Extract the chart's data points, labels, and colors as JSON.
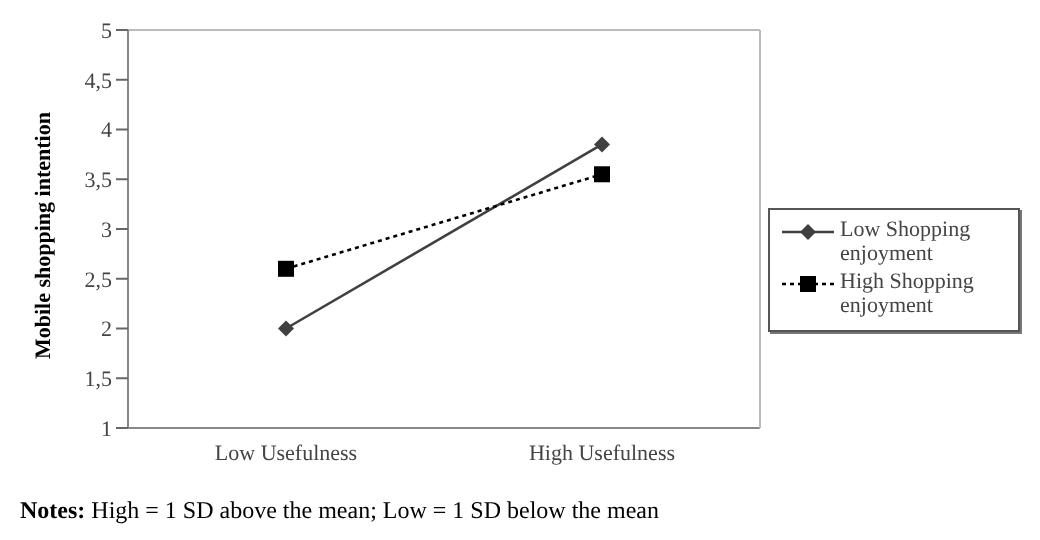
{
  "chart_data": {
    "type": "line",
    "ylabel": "Mobile shopping intention",
    "categories": [
      "Low Usefulness",
      "High Usefulness"
    ],
    "series": [
      {
        "name": "Low Shopping enjoyment",
        "color": "#404040",
        "values": [
          2.0,
          3.85
        ],
        "marker": "diamond",
        "line_style": "solid"
      },
      {
        "name": "High Shopping enjoyment",
        "color": "#000000",
        "values": [
          2.6,
          3.55
        ],
        "marker": "square",
        "line_style": "dotted"
      }
    ],
    "ylim": [
      1,
      5
    ],
    "yticks": [
      1,
      {
        "value": 1.5,
        "label": "1,5"
      },
      2,
      {
        "value": 2.5,
        "label": "2,5"
      },
      3,
      {
        "value": 3.5,
        "label": "3,5"
      },
      4,
      {
        "value": 4.5,
        "label": "4,5"
      },
      5
    ],
    "grid": false,
    "legend": "right",
    "annotations": [
      "Notes: High = 1 SD above the mean; Low = 1 SD below the mean"
    ]
  }
}
